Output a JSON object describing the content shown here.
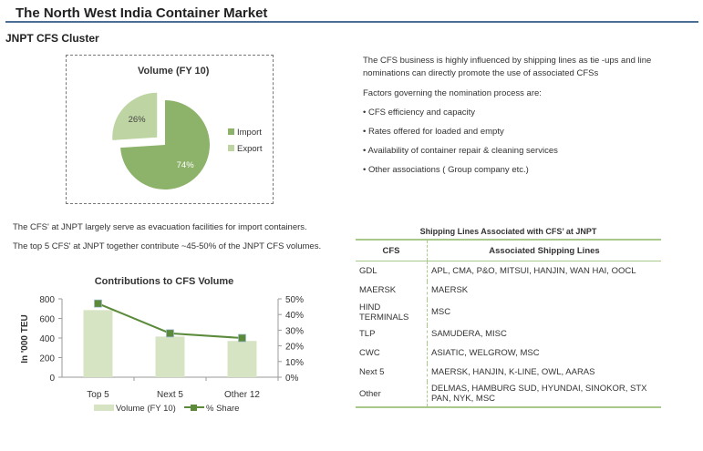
{
  "header": {
    "title": "The North West India Container Market",
    "subtitle": "JNPT CFS Cluster"
  },
  "pie": {
    "title": "Volume (FY 10)",
    "slices": [
      {
        "label": "Import",
        "value": 74,
        "display": "74%",
        "color": "#8db26a"
      },
      {
        "label": "Export",
        "value": 26,
        "display": "26%",
        "color": "#bed4a3"
      }
    ]
  },
  "right_text": {
    "para": "The CFS business is highly influenced by shipping lines as tie -ups and line nominations can directly promote the use of associated CFSs",
    "factors_heading": "Factors governing the nomination process are:",
    "bullets": [
      "CFS efficiency and capacity",
      "Rates offered for loaded and empty",
      "Availability of container repair & cleaning services",
      "Other associations ( Group company etc.)"
    ]
  },
  "left_text": {
    "line1": "The CFS' at JNPT largely serve as evacuation facilities for import containers.",
    "line2": "The top 5 CFS' at JNPT together contribute ~45-50% of the JNPT CFS volumes."
  },
  "chart_data": {
    "type": "bar+line",
    "title": "Contributions to CFS Volume",
    "ylabel": "In '000 TEU",
    "categories": [
      "Top 5",
      "Next 5",
      "Other 12"
    ],
    "ylim": [
      0,
      800
    ],
    "yticks": [
      "0",
      "200",
      "400",
      "600",
      "800"
    ],
    "y2lim": [
      0,
      50
    ],
    "y2ticks": [
      "0%",
      "10%",
      "20%",
      "30%",
      "40%",
      "50%"
    ],
    "series": [
      {
        "name": "Volume (FY 10)",
        "type": "bar",
        "values": [
          685,
          415,
          370
        ],
        "color": "#d7e4c4"
      },
      {
        "name": "% Share",
        "type": "line",
        "axis": "right",
        "values": [
          47,
          28,
          25
        ],
        "color": "#5a8a3a"
      }
    ],
    "legend": "bottom"
  },
  "table": {
    "title": "Shipping Lines Associated with CFS’  at JNPT",
    "headers": [
      "CFS",
      "Associated Shipping Lines"
    ],
    "rows": [
      [
        "GDL",
        "APL, CMA, P&O, MITSUI, HANJIN, WAN HAI,  OOCL"
      ],
      [
        "MAERSK",
        "MAERSK"
      ],
      [
        "HIND TERMINALS",
        "MSC"
      ],
      [
        "TLP",
        "SAMUDERA, MISC"
      ],
      [
        "CWC",
        "ASIATIC, WELGROW, MSC"
      ],
      [
        "Next 5",
        "MAERSK, HANJIN, K-LINE, OWL, AARAS"
      ],
      [
        "Other",
        "DELMAS, HAMBURG SUD, HYUNDAI, SINOKOR, STX PAN, NYK, MSC"
      ]
    ]
  }
}
